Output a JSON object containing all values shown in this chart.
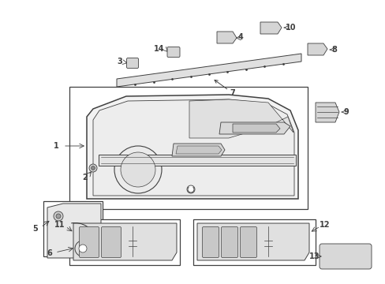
{
  "bg_color": "#ffffff",
  "line_color": "#404040",
  "fig_width": 4.89,
  "fig_height": 3.6,
  "dpi": 100,
  "label_fontsize": 7.0
}
